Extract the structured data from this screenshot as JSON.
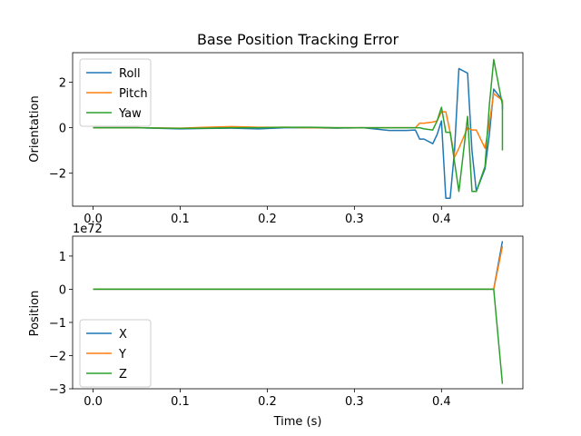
{
  "chart_data": [
    {
      "type": "line",
      "title": "Base Position Tracking Error",
      "xlabel": "",
      "ylabel": "Orientation",
      "xlim": [
        -0.0235,
        0.4935
      ],
      "ylim": [
        -3.45,
        3.3
      ],
      "xticks": [
        0.0,
        0.1,
        0.2,
        0.3,
        0.4
      ],
      "xtick_labels": [
        "0.0",
        "0.1",
        "0.2",
        "0.3",
        "0.4"
      ],
      "yticks": [
        -2,
        0,
        2
      ],
      "ytick_labels": [
        "−2",
        "0",
        "2"
      ],
      "legend": "upper-left",
      "x": [
        0.0,
        0.05,
        0.1,
        0.13,
        0.16,
        0.19,
        0.22,
        0.25,
        0.28,
        0.31,
        0.34,
        0.36,
        0.37,
        0.375,
        0.38,
        0.39,
        0.395,
        0.4,
        0.405,
        0.41,
        0.415,
        0.42,
        0.43,
        0.435,
        0.44,
        0.45,
        0.455,
        0.46,
        0.47,
        0.47
      ],
      "series": [
        {
          "name": "Roll",
          "color": "#1f77b4",
          "values": [
            0.0,
            0.0,
            -0.05,
            -0.03,
            -0.02,
            -0.05,
            0.0,
            0.0,
            -0.02,
            0.0,
            -0.12,
            -0.12,
            -0.1,
            -0.5,
            -0.5,
            -0.7,
            -0.3,
            0.3,
            -3.1,
            -3.1,
            -1.0,
            2.6,
            2.4,
            -1.0,
            -2.8,
            -1.8,
            -0.3,
            1.7,
            1.2,
            0.8
          ]
        },
        {
          "name": "Pitch",
          "color": "#ff7f0e",
          "values": [
            0.0,
            0.0,
            -0.02,
            0.02,
            0.05,
            0.02,
            0.02,
            0.0,
            0.0,
            0.0,
            0.0,
            0.0,
            0.0,
            0.2,
            0.2,
            0.25,
            0.3,
            0.7,
            0.7,
            -0.2,
            -1.3,
            -0.9,
            0.0,
            -0.1,
            -0.1,
            -0.9,
            0.2,
            1.5,
            1.2,
            1.0
          ]
        },
        {
          "name": "Yaw",
          "color": "#2ca02c",
          "values": [
            0.0,
            0.0,
            -0.03,
            -0.02,
            0.0,
            0.0,
            0.02,
            0.02,
            0.0,
            0.0,
            0.0,
            0.0,
            0.0,
            0.0,
            -0.05,
            -0.1,
            0.3,
            0.9,
            -0.2,
            -0.2,
            -1.5,
            -2.8,
            0.5,
            -2.8,
            -2.8,
            -1.7,
            1.0,
            3.0,
            1.0,
            -1.0
          ]
        }
      ]
    },
    {
      "type": "line",
      "title": "",
      "xlabel": "Time (s)",
      "ylabel": "Position",
      "xlim": [
        -0.0235,
        0.4935
      ],
      "ylim": [
        -3.0,
        1.6
      ],
      "y_offset_label": "1e72",
      "xticks": [
        0.0,
        0.1,
        0.2,
        0.3,
        0.4
      ],
      "xtick_labels": [
        "0.0",
        "0.1",
        "0.2",
        "0.3",
        "0.4"
      ],
      "yticks": [
        -3,
        -2,
        -1,
        0,
        1
      ],
      "ytick_labels": [
        "−3",
        "−2",
        "−1",
        "0",
        "1"
      ],
      "legend": "lower-left",
      "x": [
        0.0,
        0.1,
        0.2,
        0.3,
        0.4,
        0.45,
        0.46,
        0.47
      ],
      "series": [
        {
          "name": "X",
          "color": "#1f77b4",
          "values": [
            0.0,
            0.0,
            0.0,
            0.0,
            0.0,
            0.0,
            0.0,
            1.45
          ]
        },
        {
          "name": "Y",
          "color": "#ff7f0e",
          "values": [
            0.0,
            0.0,
            0.0,
            0.0,
            0.0,
            0.0,
            0.0,
            1.3
          ]
        },
        {
          "name": "Z",
          "color": "#2ca02c",
          "values": [
            0.0,
            0.0,
            0.0,
            0.0,
            0.0,
            0.0,
            0.0,
            -2.85
          ]
        }
      ]
    }
  ]
}
